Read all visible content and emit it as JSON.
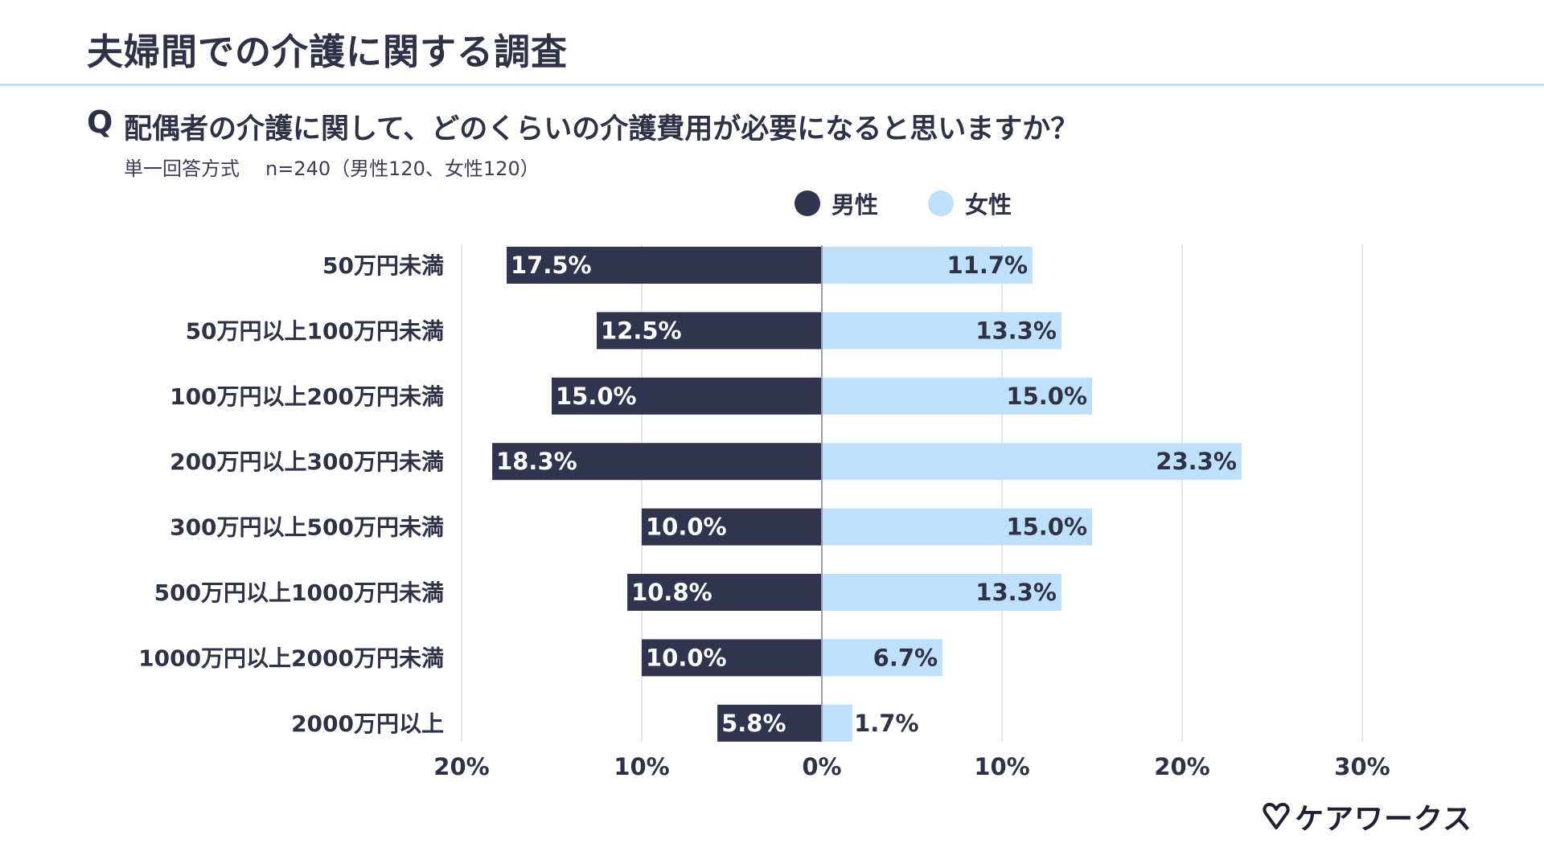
{
  "header": {
    "title": "夫婦間での介護に関する調査",
    "q_mark": "Q",
    "question": "配偶者の介護に関して、どのくらいの介護費用が必要になると思いますか？",
    "method": "単一回答方式",
    "sample": "n=240（男性120、女性120）"
  },
  "brand": {
    "name": "ケアワークス",
    "icon": "heart-v-icon"
  },
  "colors": {
    "male": "#31344f",
    "female": "#bfe0fb",
    "grid": "#dcdde3",
    "axis": "#9a9db0",
    "text": "#2f3147"
  },
  "chart_data": {
    "type": "bar",
    "orientation": "horizontal-diverging",
    "categories": [
      "50万円未満",
      "50万円以上100万円未満",
      "100万円以上200万円未満",
      "200万円以上300万円未満",
      "300万円以上500万円未満",
      "500万円以上1000万円未満",
      "1000万円以上2000万円未満",
      "2000万円以上"
    ],
    "series": [
      {
        "name": "男性",
        "values": [
          17.5,
          12.5,
          15.0,
          18.3,
          10.0,
          10.8,
          10.0,
          5.8
        ],
        "labels": [
          "17.5%",
          "12.5%",
          "15.0%",
          "18.3%",
          "10.0%",
          "10.8%",
          "10.0%",
          "5.8%"
        ]
      },
      {
        "name": "女性",
        "values": [
          11.7,
          13.3,
          15.0,
          23.3,
          15.0,
          13.3,
          6.7,
          1.7
        ],
        "labels": [
          "11.7%",
          "13.3%",
          "15.0%",
          "23.3%",
          "15.0%",
          "13.3%",
          "6.7%",
          "1.7%"
        ]
      }
    ],
    "xlim": [
      -20,
      30
    ],
    "x_ticks": [
      -20,
      -10,
      0,
      10,
      20,
      30
    ],
    "x_tick_labels": [
      "20%",
      "10%",
      "0%",
      "10%",
      "20%",
      "30%"
    ],
    "grid": true,
    "legend": "top-center"
  }
}
